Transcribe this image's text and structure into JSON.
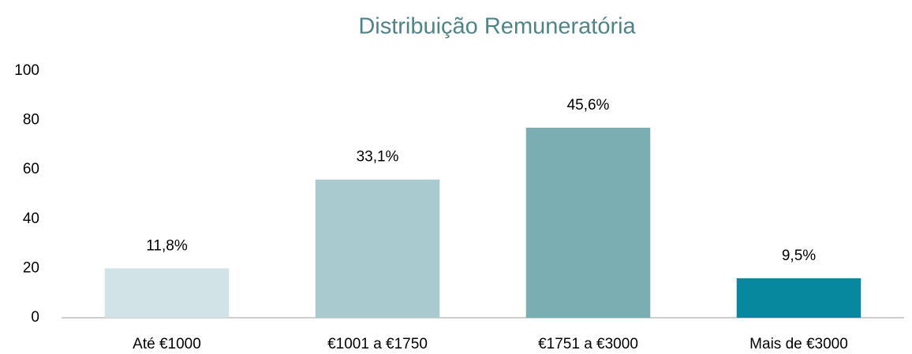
{
  "chart_data": {
    "type": "bar",
    "title": "Distribuição Remuneratória",
    "categories": [
      "Até €1000",
      "€1001 a €1750",
      "€1751 a €3000",
      "Mais de €3000"
    ],
    "values": [
      20,
      56,
      77,
      16
    ],
    "colors": [
      "#d2e3e7",
      "#a9cbd0",
      "#7baeb3",
      "#08889e"
    ],
    "shares": {
      "values": [
        11.8,
        33.1,
        45.6,
        9.5
      ],
      "value_labels": [
        "11,8%",
        "33,1%",
        "45,6%",
        "9,5%"
      ]
    },
    "ylim": [
      0,
      100
    ],
    "yticks": [
      0,
      20,
      40,
      60,
      80,
      100
    ],
    "grid": false
  }
}
